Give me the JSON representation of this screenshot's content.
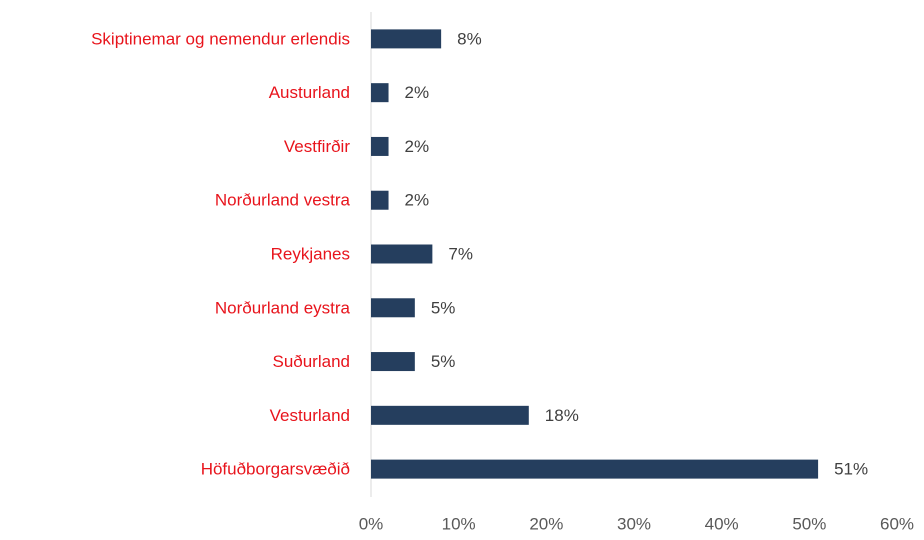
{
  "chart_data": {
    "type": "hbar",
    "categories": [
      "Skiptinemar og nemendur erlendis",
      "Austurland",
      "Vestfirðir",
      "Norðurland vestra",
      "Reykjanes",
      "Norðurland eystra",
      "Suðurland",
      "Vesturland",
      "Höfuðborgarsvæðið"
    ],
    "values": [
      8,
      2,
      2,
      2,
      7,
      5,
      5,
      18,
      51
    ],
    "value_labels": [
      "8%",
      "2%",
      "2%",
      "2%",
      "7%",
      "5%",
      "5%",
      "18%",
      "51%"
    ],
    "color": "#253e5e",
    "category_color": "#e8141c",
    "xlim": [
      0,
      60
    ],
    "xticks": [
      {
        "value": 0,
        "label": "0%"
      },
      {
        "value": 10,
        "label": "10%"
      },
      {
        "value": 20,
        "label": "20%"
      },
      {
        "value": 30,
        "label": "30%"
      },
      {
        "value": 40,
        "label": "40%"
      },
      {
        "value": 50,
        "label": "50%"
      },
      {
        "value": 60,
        "label": "60%"
      }
    ],
    "grid": false
  }
}
